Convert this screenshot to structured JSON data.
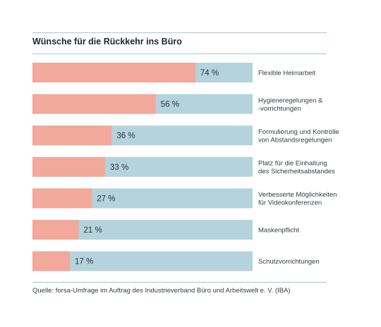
{
  "chart_data": {
    "type": "bar",
    "orientation": "horizontal",
    "title": "Wünsche für die Rückkehr ins Büro",
    "source": "Quelle: forsa-Umfrage im Auftrag des Industrieverband Büro und Arbeitswelt e. V. (IBA)",
    "value_suffix": "%",
    "xlim": [
      0,
      100
    ],
    "categories": [
      [
        "Flexible Heimarbeit"
      ],
      [
        "Hygieneregelungen &",
        "-vorrichtungen"
      ],
      [
        "Formulierung und Kontrolle",
        "von Abstandsregelungen"
      ],
      [
        "Platz für die Einhaltung",
        "des Sicherheitsabstandes"
      ],
      [
        "Verbesserte Möglichkeiten",
        "für Videokonferenzen"
      ],
      [
        "Maskenpflicht"
      ],
      [
        "Schutzvorrichtungen"
      ]
    ],
    "values": [
      74,
      56,
      36,
      33,
      27,
      21,
      17
    ],
    "colors": {
      "bar": "#f2a89a",
      "track": "#b4d3dc",
      "rule": "#9fc9d6"
    },
    "grid": false,
    "legend": "none"
  }
}
